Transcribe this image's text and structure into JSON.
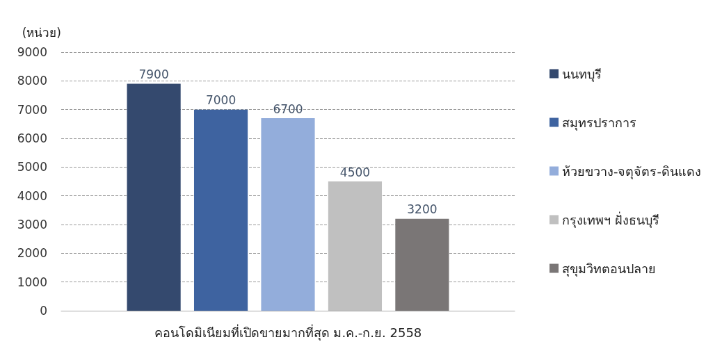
{
  "chart_data": {
    "type": "bar",
    "xlabel": "คอนโดมิเนียมที่เปิดขายมากที่สุด ม.ค.-ก.ย. 2558",
    "ylabel": "(หน่วย)",
    "categories": [
      null
    ],
    "series": [
      {
        "name": "นนทบุรี",
        "color": "#34496e",
        "values": [
          7900
        ]
      },
      {
        "name": "สมุทรปราการ",
        "color": "#3e63a0",
        "values": [
          7000
        ]
      },
      {
        "name": "ห้วยขวาง-จตุจัตร-ดินแดง",
        "color": "#93addb",
        "values": [
          6700
        ]
      },
      {
        "name": "กรุงเทพฯ ฝั่งธนบุรี",
        "color": "#c0c0c0",
        "values": [
          4500
        ]
      },
      {
        "name": "สุขุมวิทตอนปลาย",
        "color": "#7a7676",
        "values": [
          3200
        ]
      }
    ],
    "ylim": [
      0,
      9000
    ],
    "yticks": [
      0,
      1000,
      2000,
      3000,
      4000,
      5000,
      6000,
      7000,
      8000,
      9000
    ],
    "grid": "y",
    "legend": "right",
    "data_labels": true
  }
}
